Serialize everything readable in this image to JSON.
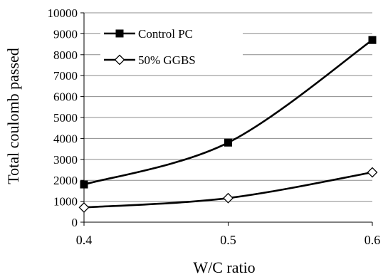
{
  "chart_data": {
    "type": "line",
    "xlabel": "W/C ratio",
    "ylabel": "Total coulomb passed",
    "x": [
      0.4,
      0.5,
      0.6
    ],
    "x_tick_labels": [
      "0.4",
      "0.5",
      "0.6"
    ],
    "xlim": [
      0.4,
      0.6
    ],
    "ylim": [
      0,
      10000
    ],
    "y_ticks": [
      0,
      1000,
      2000,
      3000,
      4000,
      5000,
      6000,
      7000,
      8000,
      9000,
      10000
    ],
    "grid": "horizontal gridlines",
    "smooth": true,
    "legend": "top-left inside plot",
    "series": [
      {
        "name": "Control PC",
        "values": [
          1800,
          3800,
          8700
        ],
        "marker": "filled-square",
        "color": "#000000"
      },
      {
        "name": "50% GGBS",
        "values": [
          700,
          1150,
          2380
        ],
        "marker": "open-diamond",
        "color": "#000000"
      }
    ]
  }
}
